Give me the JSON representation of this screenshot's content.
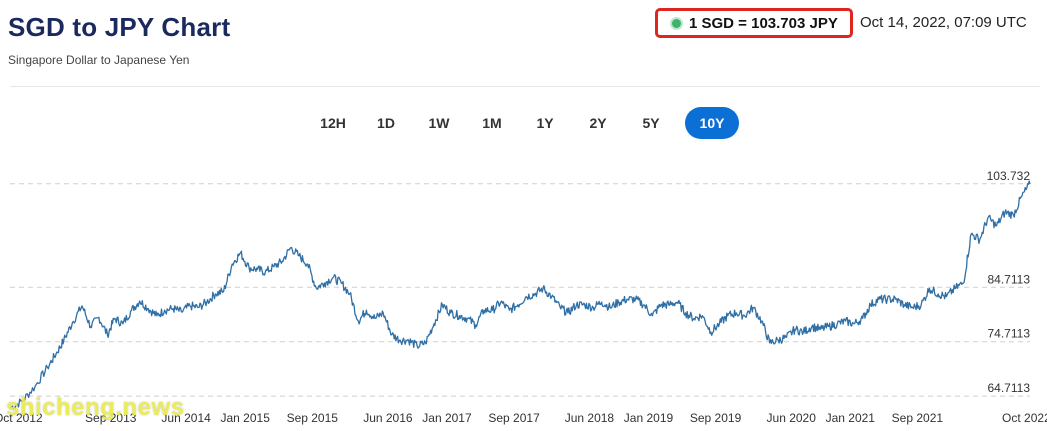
{
  "header": {
    "title": "SGD to JPY Chart",
    "subtitle": "Singapore Dollar to Japanese Yen",
    "rate_text": "1 SGD = 103.703 JPY",
    "timestamp": "Oct 14, 2022, 07:09 UTC",
    "live_indicator_color": "#3db36b",
    "highlight_color": "#e0251f"
  },
  "range_tabs": [
    {
      "label": "12H",
      "active": false
    },
    {
      "label": "1D",
      "active": false
    },
    {
      "label": "1W",
      "active": false
    },
    {
      "label": "1M",
      "active": false
    },
    {
      "label": "1Y",
      "active": false
    },
    {
      "label": "2Y",
      "active": false
    },
    {
      "label": "5Y",
      "active": false
    },
    {
      "label": "10Y",
      "active": true
    }
  ],
  "watermark": "shicheng.news",
  "chart_data": {
    "type": "line",
    "title": "",
    "xlabel": "",
    "ylabel": "",
    "line_color": "#2f6fa5",
    "grid": "horizontal-dashed",
    "y_ticks": [
      64.7113,
      74.7113,
      84.7113,
      103.732
    ],
    "y_tick_labels": [
      "64.7113",
      "74.7113",
      "84.7113",
      "103.732"
    ],
    "ylim": [
      64.0,
      104.8
    ],
    "xlim": [
      "2012-09-01",
      "2022-10-14"
    ],
    "x_ticks": [
      {
        "date": "2012-10-01",
        "label": "Oct 2012"
      },
      {
        "date": "2013-09-01",
        "label": "Sep 2013"
      },
      {
        "date": "2014-06-01",
        "label": "Jun 2014"
      },
      {
        "date": "2015-01-01",
        "label": "Jan 2015"
      },
      {
        "date": "2015-09-01",
        "label": "Sep 2015"
      },
      {
        "date": "2016-06-01",
        "label": "Jun 2016"
      },
      {
        "date": "2017-01-01",
        "label": "Jan 2017"
      },
      {
        "date": "2017-09-01",
        "label": "Sep 2017"
      },
      {
        "date": "2018-06-01",
        "label": "Jun 2018"
      },
      {
        "date": "2019-01-01",
        "label": "Jan 2019"
      },
      {
        "date": "2019-09-01",
        "label": "Sep 2019"
      },
      {
        "date": "2020-06-01",
        "label": "Jun 2020"
      },
      {
        "date": "2021-01-01",
        "label": "Jan 2021"
      },
      {
        "date": "2021-09-01",
        "label": "Sep 2021"
      },
      {
        "date": "2022-10-01",
        "label": "Oct 2022"
      }
    ],
    "series": [
      {
        "points": [
          [
            "2012-09-01",
            62.5
          ],
          [
            "2012-10-15",
            63.8
          ],
          [
            "2012-12-01",
            66.5
          ],
          [
            "2013-01-15",
            70.0
          ],
          [
            "2013-02-15",
            72.5
          ],
          [
            "2013-03-15",
            75.0
          ],
          [
            "2013-04-15",
            78.2
          ],
          [
            "2013-05-20",
            81.3
          ],
          [
            "2013-06-20",
            77.5
          ],
          [
            "2013-07-20",
            79.2
          ],
          [
            "2013-08-20",
            76.0
          ],
          [
            "2013-09-15",
            79.0
          ],
          [
            "2013-10-15",
            78.0
          ],
          [
            "2013-11-15",
            80.5
          ],
          [
            "2013-12-15",
            82.2
          ],
          [
            "2014-01-15",
            80.8
          ],
          [
            "2014-02-15",
            79.5
          ],
          [
            "2014-03-15",
            80.5
          ],
          [
            "2014-04-15",
            80.8
          ],
          [
            "2014-05-15",
            80.2
          ],
          [
            "2014-06-15",
            81.3
          ],
          [
            "2014-07-15",
            81.0
          ],
          [
            "2014-08-15",
            82.0
          ],
          [
            "2014-09-15",
            83.5
          ],
          [
            "2014-10-15",
            84.0
          ],
          [
            "2014-11-15",
            89.0
          ],
          [
            "2014-12-15",
            91.0
          ],
          [
            "2015-01-15",
            88.3
          ],
          [
            "2015-02-15",
            88.0
          ],
          [
            "2015-03-15",
            87.5
          ],
          [
            "2015-04-15",
            88.5
          ],
          [
            "2015-05-15",
            89.5
          ],
          [
            "2015-06-15",
            92.0
          ],
          [
            "2015-07-15",
            90.5
          ],
          [
            "2015-08-15",
            89.0
          ],
          [
            "2015-09-15",
            84.6
          ],
          [
            "2015-10-15",
            85.5
          ],
          [
            "2015-11-15",
            86.5
          ],
          [
            "2015-12-15",
            85.5
          ],
          [
            "2016-01-15",
            83.5
          ],
          [
            "2016-02-15",
            78.5
          ],
          [
            "2016-03-15",
            80.5
          ],
          [
            "2016-04-15",
            79.0
          ],
          [
            "2016-05-15",
            80.0
          ],
          [
            "2016-06-15",
            76.0
          ],
          [
            "2016-07-15",
            75.0
          ],
          [
            "2016-08-15",
            75.0
          ],
          [
            "2016-09-15",
            73.9
          ],
          [
            "2016-10-15",
            74.5
          ],
          [
            "2016-11-15",
            78.0
          ],
          [
            "2016-12-15",
            81.5
          ],
          [
            "2017-01-15",
            80.0
          ],
          [
            "2017-02-15",
            79.5
          ],
          [
            "2017-03-15",
            79.0
          ],
          [
            "2017-04-15",
            77.8
          ],
          [
            "2017-05-15",
            80.5
          ],
          [
            "2017-06-15",
            80.5
          ],
          [
            "2017-07-15",
            82.0
          ],
          [
            "2017-08-15",
            80.5
          ],
          [
            "2017-09-15",
            81.5
          ],
          [
            "2017-10-15",
            83.0
          ],
          [
            "2017-11-15",
            83.5
          ],
          [
            "2017-12-15",
            84.5
          ],
          [
            "2018-01-15",
            83.0
          ],
          [
            "2018-02-15",
            81.0
          ],
          [
            "2018-03-15",
            80.0
          ],
          [
            "2018-04-15",
            81.5
          ],
          [
            "2018-05-15",
            81.5
          ],
          [
            "2018-06-15",
            81.0
          ],
          [
            "2018-07-15",
            82.0
          ],
          [
            "2018-08-15",
            81.0
          ],
          [
            "2018-09-15",
            82.0
          ],
          [
            "2018-10-15",
            82.5
          ],
          [
            "2018-11-15",
            82.5
          ],
          [
            "2018-12-15",
            81.5
          ],
          [
            "2019-01-15",
            79.5
          ],
          [
            "2019-02-15",
            81.5
          ],
          [
            "2019-03-15",
            81.5
          ],
          [
            "2019-04-15",
            82.0
          ],
          [
            "2019-05-15",
            80.0
          ],
          [
            "2019-06-15",
            79.0
          ],
          [
            "2019-07-15",
            79.5
          ],
          [
            "2019-08-15",
            76.5
          ],
          [
            "2019-09-15",
            78.0
          ],
          [
            "2019-10-15",
            79.5
          ],
          [
            "2019-11-15",
            80.0
          ],
          [
            "2019-12-15",
            79.5
          ],
          [
            "2020-01-15",
            81.0
          ],
          [
            "2020-02-15",
            78.5
          ],
          [
            "2020-03-15",
            74.5
          ],
          [
            "2020-04-15",
            75.0
          ],
          [
            "2020-05-15",
            75.5
          ],
          [
            "2020-06-15",
            77.0
          ],
          [
            "2020-07-15",
            76.5
          ],
          [
            "2020-08-15",
            77.5
          ],
          [
            "2020-09-15",
            77.0
          ],
          [
            "2020-10-15",
            77.5
          ],
          [
            "2020-11-15",
            78.0
          ],
          [
            "2020-12-15",
            78.5
          ],
          [
            "2021-01-15",
            78.0
          ],
          [
            "2021-02-15",
            79.0
          ],
          [
            "2021-03-15",
            81.5
          ],
          [
            "2021-04-15",
            82.5
          ],
          [
            "2021-05-15",
            82.5
          ],
          [
            "2021-06-15",
            82.5
          ],
          [
            "2021-07-15",
            81.5
          ],
          [
            "2021-08-15",
            81.0
          ],
          [
            "2021-09-15",
            81.5
          ],
          [
            "2021-10-15",
            84.5
          ],
          [
            "2021-11-15",
            83.5
          ],
          [
            "2021-12-15",
            83.0
          ],
          [
            "2022-01-15",
            84.5
          ],
          [
            "2022-02-15",
            85.5
          ],
          [
            "2022-03-15",
            94.5
          ],
          [
            "2022-04-15",
            93.5
          ],
          [
            "2022-05-15",
            97.5
          ],
          [
            "2022-06-15",
            96.0
          ],
          [
            "2022-07-15",
            98.5
          ],
          [
            "2022-08-15",
            98.0
          ],
          [
            "2022-09-15",
            101.5
          ],
          [
            "2022-10-14",
            103.7
          ]
        ]
      }
    ]
  }
}
